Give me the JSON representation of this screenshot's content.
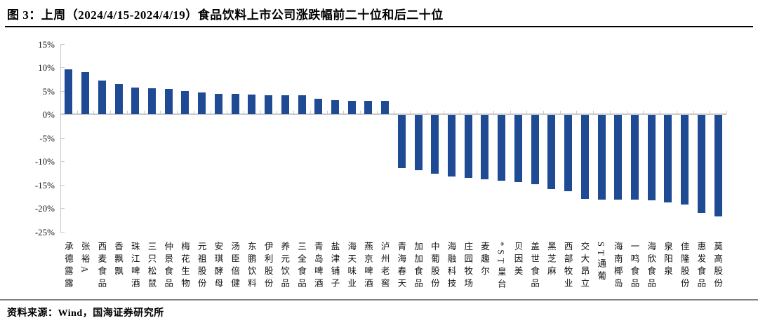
{
  "title": "图 3：上周（2024/4/15-2024/4/19）食品饮料上市公司涨跌幅前二十位和后二十位",
  "source": "资料来源：Wind，国海证券研究所",
  "chart_data": {
    "type": "bar",
    "title": "上周（2024/4/15-2024/4/19）食品饮料上市公司涨跌幅前二十位和后二十位",
    "xlabel": "",
    "ylabel": "",
    "unit": "%",
    "ylim": [
      -25,
      15
    ],
    "y_tick_labels": [
      "15%",
      "10%",
      "5%",
      "0%",
      "-5%",
      "-10%",
      "-15%",
      "-20%",
      "-25%"
    ],
    "y_tick_values": [
      15,
      10,
      5,
      0,
      -5,
      -10,
      -15,
      -20,
      -25
    ],
    "grid": false,
    "legend_position": "none",
    "bar_color": "#1f4b94",
    "axis_color": "#c9c9c9",
    "categories": [
      "承德露露",
      "张裕A",
      "西麦食品",
      "香飘飘",
      "珠江啤酒",
      "三只松鼠",
      "仲景食品",
      "梅花生物",
      "元祖股份",
      "安琪酵母",
      "汤臣倍健",
      "东鹏饮料",
      "伊利股份",
      "养元饮品",
      "三全食品",
      "青岛啤酒",
      "盐津铺子",
      "海天味业",
      "燕京啤酒",
      "泸州老窖",
      "青海春天",
      "加加食品",
      "中葡股份",
      "海融科技",
      "庄园牧场",
      "麦趣尔",
      "*ST皇台",
      "贝因美",
      "盖世食品",
      "黑芝麻",
      "西部牧业",
      "交大昂立",
      "ST通葡",
      "海南椰岛",
      "一鸣食品",
      "海欣食品",
      "泉阳泉",
      "佳隆股份",
      "惠发食品",
      "莫高股份"
    ],
    "values": [
      9.5,
      9.0,
      7.1,
      6.4,
      5.6,
      5.5,
      5.4,
      5.0,
      4.6,
      4.4,
      4.3,
      4.2,
      4.1,
      4.1,
      4.0,
      3.3,
      3.0,
      2.9,
      2.9,
      2.8,
      -11.3,
      -11.8,
      -12.6,
      -13.1,
      -13.5,
      -13.8,
      -14.1,
      -14.3,
      -14.8,
      -15.8,
      -16.3,
      -17.9,
      -18.0,
      -18.0,
      -18.1,
      -18.2,
      -18.7,
      -19.1,
      -20.9,
      -21.6
    ]
  }
}
